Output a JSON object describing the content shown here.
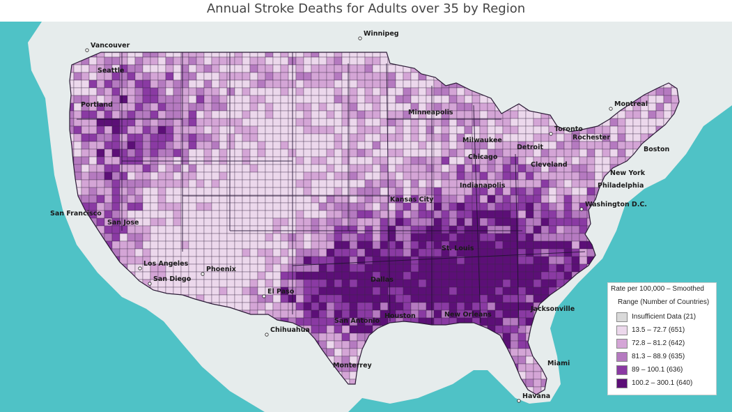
{
  "title": "Annual Stroke Deaths for Adults over 35 by Region",
  "colors": {
    "ocean": "#4fc2c6",
    "land": "#e9eeee",
    "border": "#2a1a35",
    "bins": [
      "#d9d9d9",
      "#ecd8ec",
      "#d4a5d6",
      "#b57ac0",
      "#8a3aa3",
      "#5c0f77"
    ]
  },
  "legend": {
    "title": "Rate per 100,000  – Smoothed",
    "subtitle": "Range (Number of Countries)",
    "items": [
      {
        "label": "Insufficient Data (21)",
        "color": "#d9d9d9"
      },
      {
        "label": "13.5 – 72.7 (651)",
        "color": "#ecd8ec"
      },
      {
        "label": "72.8 – 81.2 (642)",
        "color": "#d4a5d6"
      },
      {
        "label": "81.3 – 88.9 (635)",
        "color": "#b57ac0"
      },
      {
        "label": "89 – 100.1 (636)",
        "color": "#8a3aa3"
      },
      {
        "label": "100.2 – 300.1 (640)",
        "color": "#5c0f77"
      }
    ]
  },
  "cities": [
    {
      "name": "Vancouver"
    },
    {
      "name": "Winnipeg"
    },
    {
      "name": "Seattle"
    },
    {
      "name": "Portland"
    },
    {
      "name": "Montreal"
    },
    {
      "name": "Toronto"
    },
    {
      "name": "Rochester"
    },
    {
      "name": "Boston"
    },
    {
      "name": "Minneapolis"
    },
    {
      "name": "Milwaukee"
    },
    {
      "name": "Detroit"
    },
    {
      "name": "Chicago"
    },
    {
      "name": "New York"
    },
    {
      "name": "Philadelphia"
    },
    {
      "name": "Washington D.C."
    },
    {
      "name": "San Francisco"
    },
    {
      "name": "San Jose"
    },
    {
      "name": "Los Angeles"
    },
    {
      "name": "San Diego"
    },
    {
      "name": "Phoenix"
    },
    {
      "name": "El Paso"
    },
    {
      "name": "Chihuahua"
    },
    {
      "name": "Dallas"
    },
    {
      "name": "San Antonio"
    },
    {
      "name": "Houston"
    },
    {
      "name": "New Orleans"
    },
    {
      "name": "Jacksonville"
    },
    {
      "name": "Miami"
    },
    {
      "name": "Monterrey"
    },
    {
      "name": "Havana"
    },
    {
      "name": "Kansas City"
    },
    {
      "name": "St. Louis"
    },
    {
      "name": "Indianapolis"
    },
    {
      "name": "Cleveland"
    }
  ]
}
